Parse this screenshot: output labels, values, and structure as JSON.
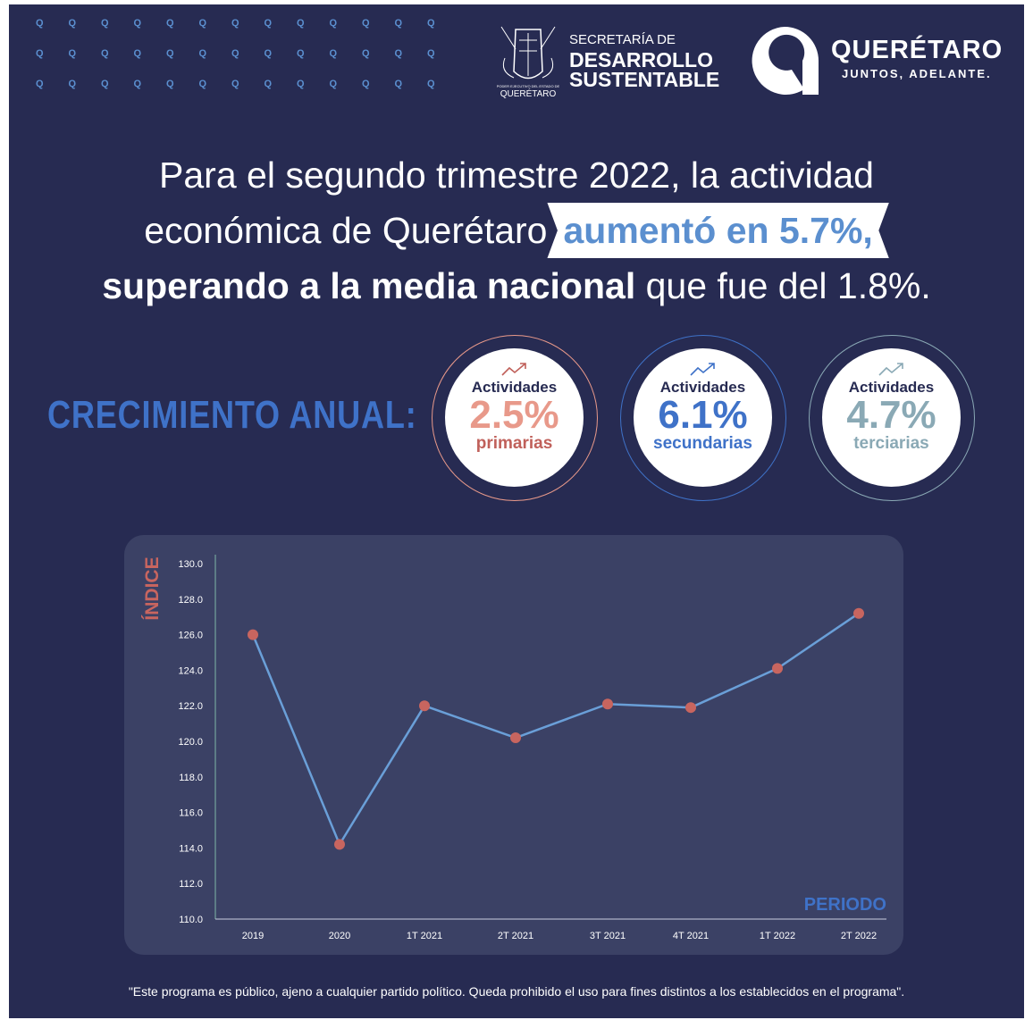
{
  "header": {
    "secretaria_line1": "SECRETARÍA DE",
    "secretaria_line2": "DESARROLLO",
    "secretaria_line3": "SUSTENTABLE",
    "seal_caption_small": "PODER EJECUTIVO DEL ESTADO DE",
    "seal_caption": "QUERÉTARO",
    "brand": "QUERÉTARO",
    "tagline": "JUNTOS, ADELANTE.",
    "pattern_glyph": "Q"
  },
  "headline": {
    "line1": "Para el segundo trimestre 2022, la actividad",
    "line2_a": "económica de Querétaro",
    "line2_highlight": "aumentó en 5.7%,",
    "line3_bold": "superando a la media nacional",
    "line3_rest": " que fue del 1.8%."
  },
  "growth": {
    "title": "CRECIMIENTO ANUAL:",
    "items": [
      {
        "label": "Actividades",
        "value": "2.5%",
        "sector": "primarias",
        "color": "#e8998a",
        "sector_color": "#c0605a",
        "ring": "#e8998a",
        "icon": "trending-up-icon"
      },
      {
        "label": "Actividades",
        "value": "6.1%",
        "sector": "secundarias",
        "color": "#3f72c8",
        "sector_color": "#3f72c8",
        "ring": "#3f72c8",
        "icon": "trending-up-icon"
      },
      {
        "label": "Actividades",
        "value": "4.7%",
        "sector": "terciarias",
        "color": "#8aa9b5",
        "sector_color": "#8aa9b5",
        "ring": "#8aa9b5",
        "icon": "trending-up-icon"
      }
    ]
  },
  "chart_data": {
    "type": "line",
    "categories": [
      "2019",
      "2020",
      "1T 2021",
      "2T 2021",
      "3T 2021",
      "4T 2021",
      "1T 2022",
      "2T 2022"
    ],
    "series": [
      {
        "name": "Índice",
        "values": [
          126.0,
          114.2,
          122.0,
          120.2,
          122.1,
          121.9,
          124.1,
          127.2
        ]
      }
    ],
    "ylabel": "ÍNDICE",
    "xlabel": "PERIODO",
    "ylim": [
      110,
      130
    ],
    "yticks": [
      "110.0",
      "112.0",
      "114.0",
      "116.0",
      "118.0",
      "120.0",
      "122.0",
      "124.0",
      "126.0",
      "128.0",
      "130.0"
    ],
    "line_color": "#6a9fd8",
    "marker_color": "#c8655f",
    "grid": false
  },
  "footer": "\"Este programa es público, ajeno a cualquier partido político. Queda prohibido el uso para fines distintos a los establecidos en el programa\"."
}
